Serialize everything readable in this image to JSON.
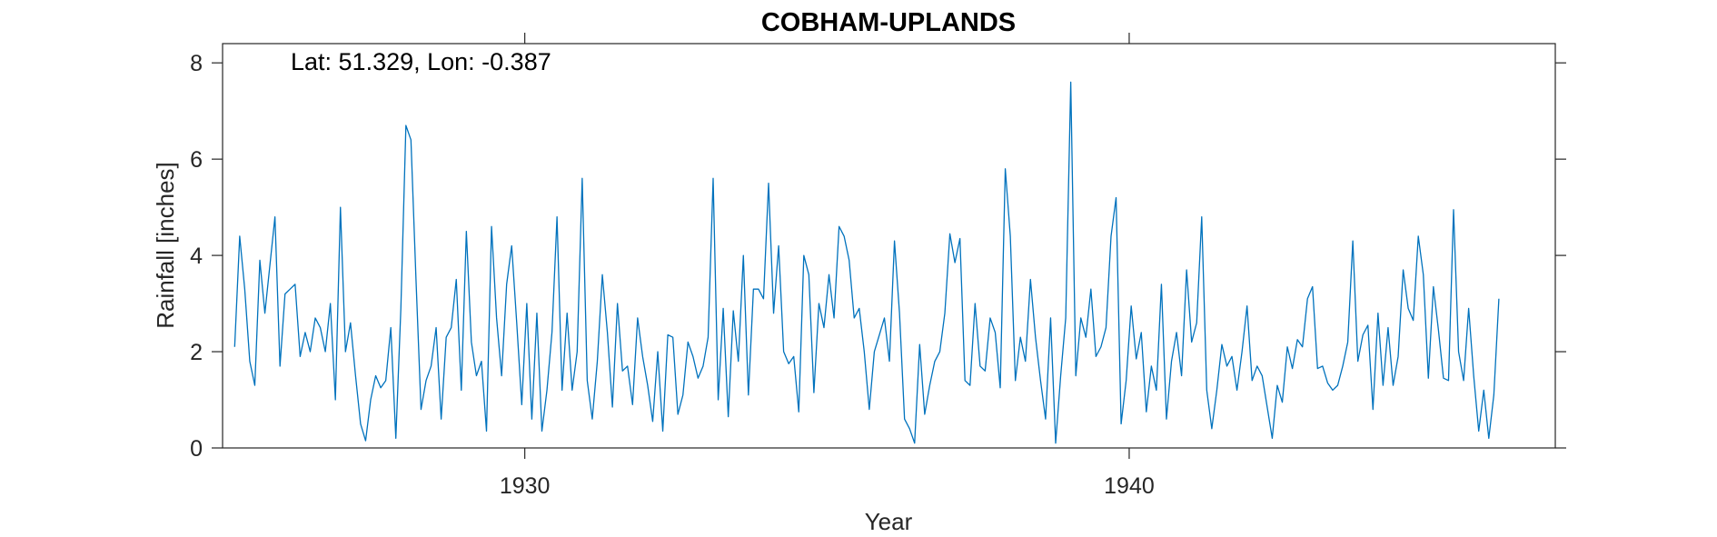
{
  "chart_data": {
    "type": "line",
    "title": "COBHAM-UPLANDS",
    "annotation": "Lat: 51.329, Lon: -0.387",
    "xlabel": "Year",
    "ylabel": "Rainfall [inches]",
    "xlim": [
      1925.0,
      1947.05
    ],
    "ylim": [
      0,
      8.4
    ],
    "xticks": [
      1930,
      1940
    ],
    "xtick_labels": [
      "1930",
      "1940"
    ],
    "yticks": [
      0,
      2,
      4,
      6,
      8
    ],
    "ytick_labels": [
      "0",
      "2",
      "4",
      "6",
      "8"
    ],
    "grid": false,
    "series": [
      {
        "color": "#0072BD",
        "x_start": 1925.2,
        "x_step": 0.083333,
        "values": [
          2.1,
          4.4,
          3.3,
          1.8,
          1.3,
          3.9,
          2.8,
          3.8,
          4.8,
          1.7,
          3.2,
          3.3,
          3.4,
          1.9,
          2.4,
          2.0,
          2.7,
          2.5,
          2.0,
          3.0,
          1.0,
          5.0,
          2.0,
          2.6,
          1.5,
          0.5,
          0.15,
          1.0,
          1.5,
          1.25,
          1.4,
          2.5,
          0.2,
          2.9,
          6.7,
          6.4,
          3.5,
          0.8,
          1.4,
          1.7,
          2.5,
          0.6,
          2.3,
          2.5,
          3.5,
          1.2,
          4.5,
          2.2,
          1.5,
          1.8,
          0.35,
          4.6,
          2.7,
          1.5,
          3.4,
          4.2,
          2.6,
          0.9,
          3.0,
          0.6,
          2.8,
          0.35,
          1.2,
          2.4,
          4.8,
          1.2,
          2.8,
          1.2,
          2.0,
          5.6,
          1.4,
          0.6,
          1.8,
          3.6,
          2.4,
          0.85,
          3.0,
          1.6,
          1.7,
          0.9,
          2.7,
          1.9,
          1.3,
          0.55,
          2.0,
          0.35,
          2.35,
          2.3,
          0.7,
          1.1,
          2.2,
          1.9,
          1.45,
          1.7,
          2.3,
          5.6,
          1.0,
          2.9,
          0.65,
          2.85,
          1.8,
          4.0,
          1.1,
          3.3,
          3.3,
          3.1,
          5.5,
          2.8,
          4.2,
          2.0,
          1.75,
          1.9,
          0.75,
          4.0,
          3.6,
          1.15,
          3.0,
          2.5,
          3.6,
          2.7,
          4.6,
          4.4,
          3.9,
          2.7,
          2.9,
          2.0,
          0.8,
          2.0,
          2.35,
          2.7,
          1.8,
          4.3,
          2.8,
          0.6,
          0.4,
          0.1,
          2.15,
          0.7,
          1.3,
          1.8,
          2.0,
          2.8,
          4.45,
          3.85,
          4.35,
          1.4,
          1.3,
          3.0,
          1.7,
          1.6,
          2.7,
          2.4,
          1.25,
          5.8,
          4.4,
          1.4,
          2.3,
          1.8,
          3.5,
          2.3,
          1.4,
          0.6,
          2.7,
          0.1,
          1.5,
          2.7,
          7.6,
          1.5,
          2.7,
          2.3,
          3.3,
          1.9,
          2.1,
          2.5,
          4.4,
          5.2,
          0.5,
          1.4,
          2.95,
          1.85,
          2.4,
          0.75,
          1.7,
          1.2,
          3.4,
          0.6,
          1.8,
          2.4,
          1.5,
          3.7,
          2.2,
          2.6,
          4.8,
          1.2,
          0.4,
          1.2,
          2.15,
          1.7,
          1.9,
          1.2,
          2.0,
          2.95,
          1.4,
          1.7,
          1.5,
          0.85,
          0.2,
          1.3,
          0.95,
          2.1,
          1.65,
          2.25,
          2.1,
          3.1,
          3.35,
          1.65,
          1.7,
          1.35,
          1.2,
          1.3,
          1.7,
          2.2,
          4.3,
          1.8,
          2.35,
          2.55,
          0.8,
          2.8,
          1.3,
          2.5,
          1.3,
          1.9,
          3.7,
          2.9,
          2.65,
          4.4,
          3.6,
          1.45,
          3.35,
          2.45,
          1.45,
          1.4,
          4.95,
          2.0,
          1.4,
          2.9,
          1.5,
          0.35,
          1.2,
          0.2,
          1.1,
          3.1
        ]
      }
    ]
  }
}
